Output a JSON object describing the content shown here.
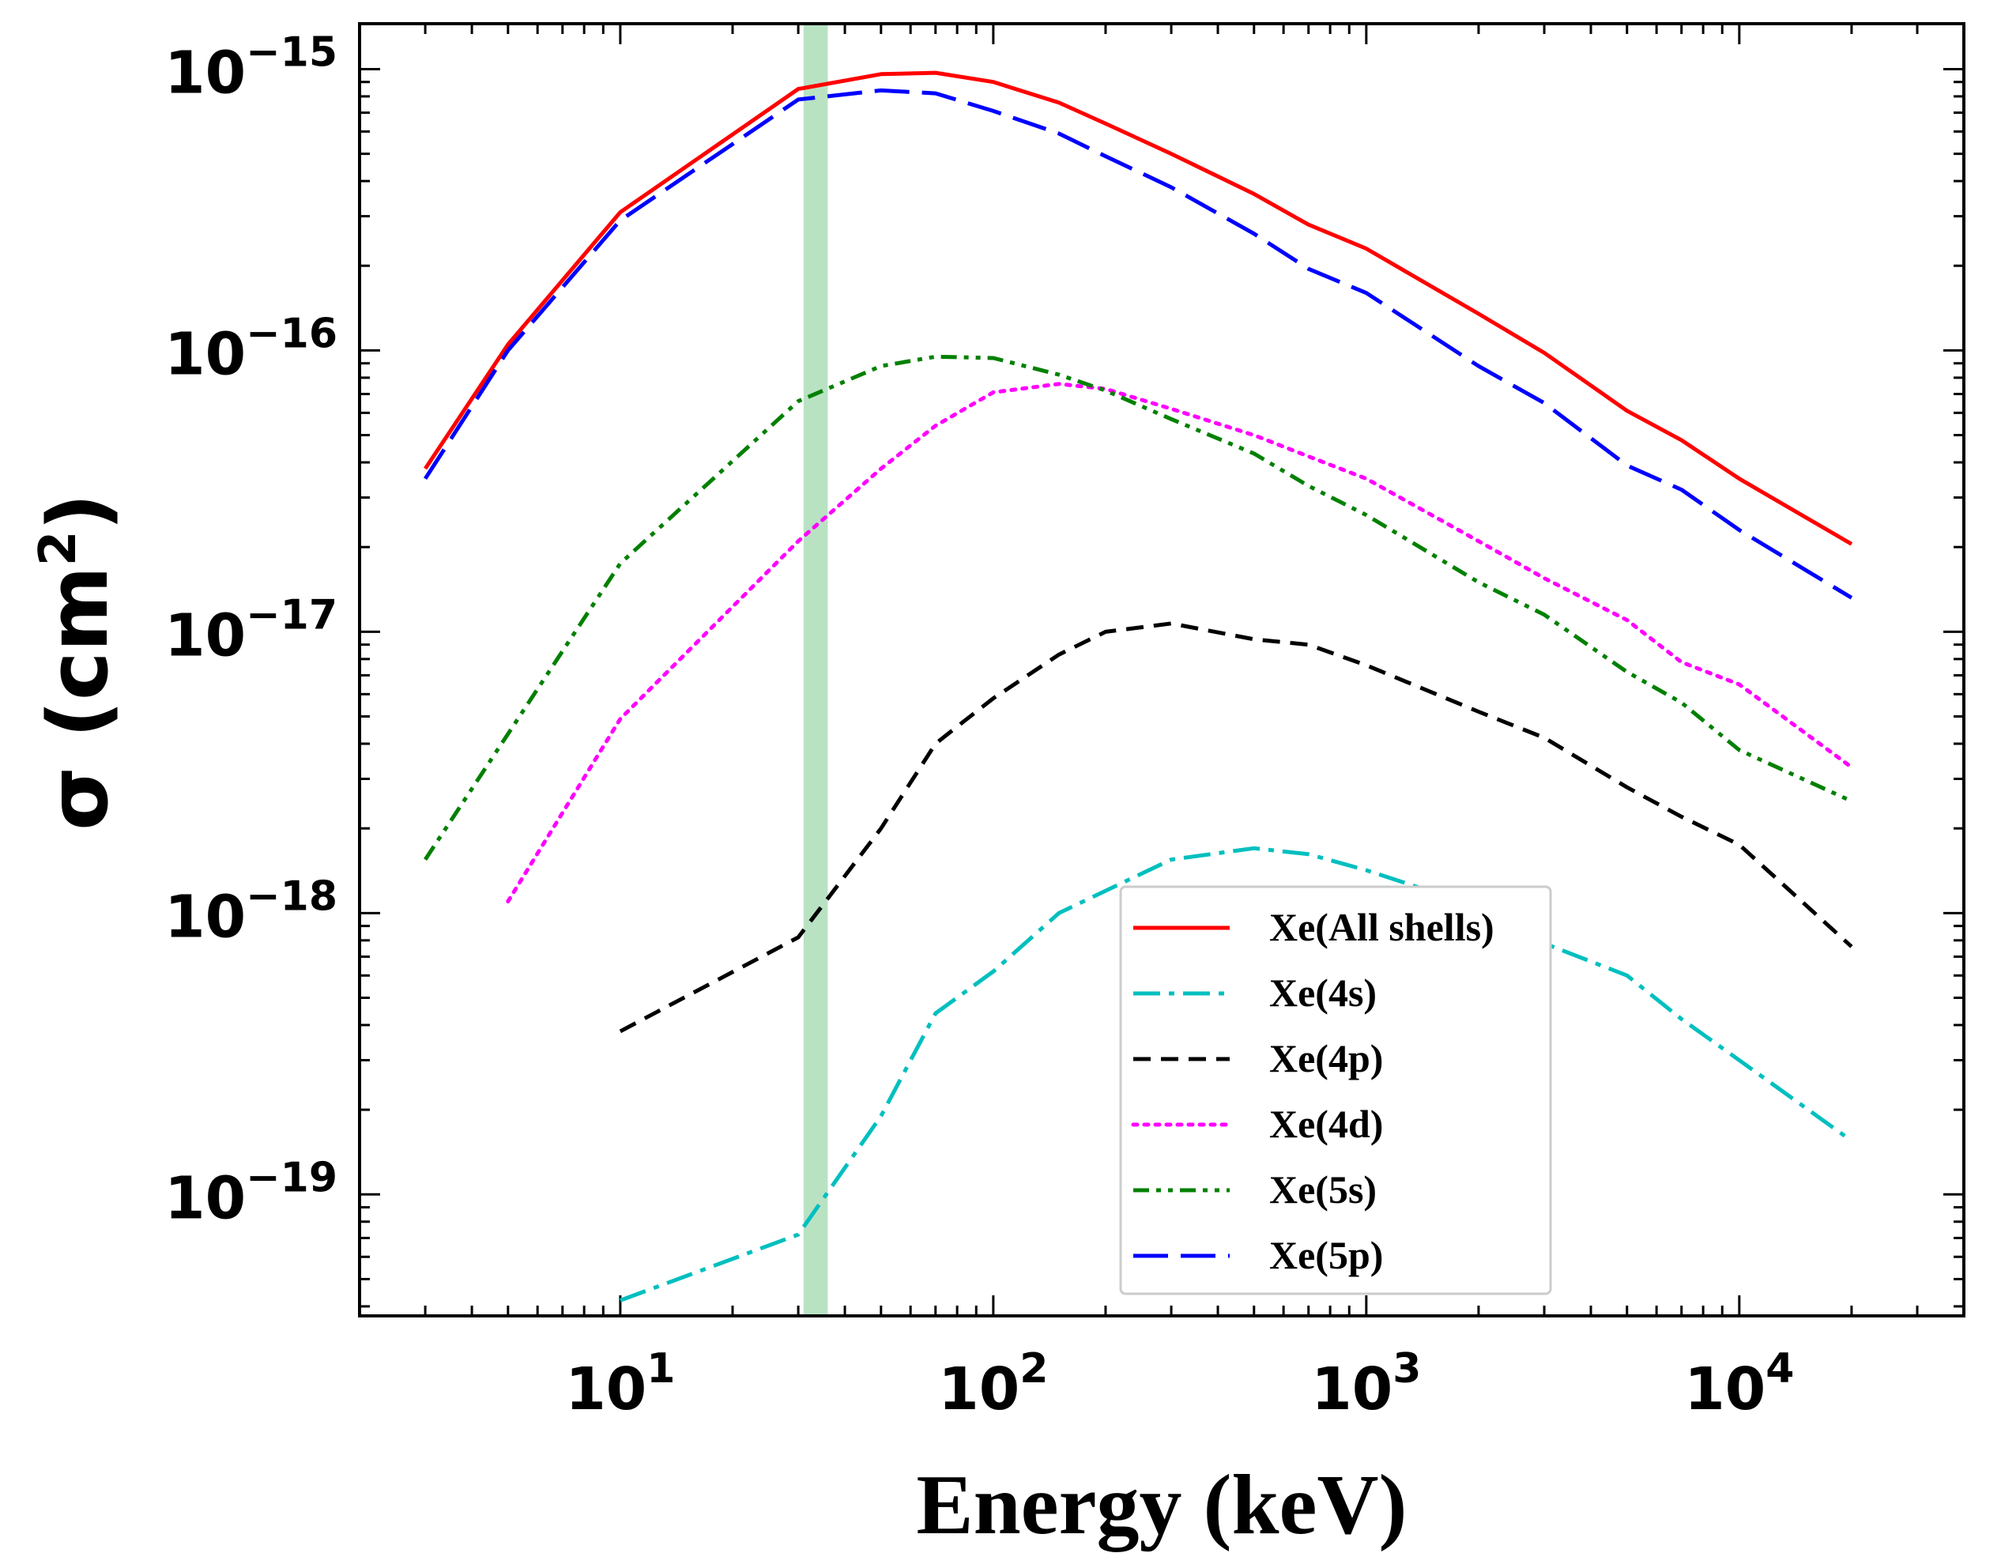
{
  "chart_data": {
    "type": "line",
    "xscale": "log",
    "yscale": "log",
    "xlabel": "Energy (keV)",
    "ylabel": {
      "main": "σ (cm",
      "sup": "2",
      "close": ")"
    },
    "xlim": [
      2,
      40000
    ],
    "ylim": [
      3.7e-20,
      1.45e-15
    ],
    "xticks": [
      {
        "value": 10,
        "base": "10",
        "exp": "1"
      },
      {
        "value": 100,
        "base": "10",
        "exp": "2"
      },
      {
        "value": 1000,
        "base": "10",
        "exp": "3"
      },
      {
        "value": 10000,
        "base": "10",
        "exp": "4"
      }
    ],
    "yticks": [
      {
        "value": 1e-19,
        "base": "10",
        "exp": "−19"
      },
      {
        "value": 1e-18,
        "base": "10",
        "exp": "−18"
      },
      {
        "value": 1e-17,
        "base": "10",
        "exp": "−17"
      },
      {
        "value": 1e-16,
        "base": "10",
        "exp": "−16"
      },
      {
        "value": 1e-15,
        "base": "10",
        "exp": "−15"
      }
    ],
    "highlight_band": {
      "x0": 31,
      "x1": 36,
      "color": "#b9e2c3"
    },
    "legend_position": "lower-center-right",
    "series": [
      {
        "name": "Xe(All shells)",
        "color": "#ff0000",
        "dash": "solid",
        "x": [
          3,
          5,
          10,
          30,
          50,
          70,
          100,
          150,
          200,
          300,
          500,
          700,
          1000,
          2000,
          3000,
          5000,
          7000,
          10000,
          20000
        ],
        "y": [
          3.8e-17,
          1.05e-16,
          3.1e-16,
          8.5e-16,
          9.6e-16,
          9.7e-16,
          9e-16,
          7.6e-16,
          6.4e-16,
          5e-16,
          3.6e-16,
          2.8e-16,
          2.3e-16,
          1.35e-16,
          9.8e-17,
          6.1e-17,
          4.8e-17,
          3.5e-17,
          2.05e-17
        ]
      },
      {
        "name": "Xe(4s)",
        "color": "#00bfbf",
        "dash": "dashdot",
        "x": [
          10,
          30,
          50,
          70,
          100,
          150,
          200,
          300,
          500,
          700,
          1000,
          2000,
          3000,
          5000,
          7000,
          10000,
          20000
        ],
        "y": [
          4.2e-20,
          7.2e-20,
          1.9e-19,
          4.4e-19,
          6.2e-19,
          1e-18,
          1.2e-18,
          1.55e-18,
          1.7e-18,
          1.62e-18,
          1.42e-18,
          1.05e-18,
          7.8e-19,
          6e-19,
          4.2e-19,
          3e-19,
          1.55e-19
        ]
      },
      {
        "name": "Xe(4p)",
        "color": "#000000",
        "dash": "dashed",
        "x": [
          10,
          30,
          50,
          70,
          80,
          100,
          150,
          200,
          300,
          500,
          700,
          1000,
          2000,
          3000,
          5000,
          7000,
          10000,
          20000
        ],
        "y": [
          3.8e-19,
          8.2e-19,
          2e-18,
          4e-18,
          4.6e-18,
          5.8e-18,
          8.3e-18,
          1e-17,
          1.07e-17,
          9.4e-18,
          9e-18,
          7.6e-18,
          5.2e-18,
          4.2e-18,
          2.8e-18,
          2.2e-18,
          1.75e-18,
          7.6e-19
        ]
      },
      {
        "name": "Xe(4d)",
        "color": "#ff00ff",
        "dash": "dotted",
        "x": [
          5,
          10,
          30,
          50,
          70,
          100,
          150,
          200,
          300,
          500,
          700,
          1000,
          2000,
          3000,
          5000,
          7000,
          10000,
          20000
        ],
        "y": [
          1.1e-18,
          4.9e-18,
          2.1e-17,
          3.8e-17,
          5.4e-17,
          7.1e-17,
          7.6e-17,
          7.3e-17,
          6.2e-17,
          5e-17,
          4.2e-17,
          3.5e-17,
          2.1e-17,
          1.55e-17,
          1.1e-17,
          7.8e-18,
          6.5e-18,
          3.3e-18
        ]
      },
      {
        "name": "Xe(5s)",
        "color": "#008000",
        "dash": "dashdotdot",
        "x": [
          3,
          10,
          30,
          50,
          70,
          100,
          150,
          200,
          300,
          500,
          700,
          1000,
          2000,
          3000,
          5000,
          7000,
          10000,
          20000
        ],
        "y": [
          1.55e-18,
          1.75e-17,
          6.6e-17,
          8.8e-17,
          9.5e-17,
          9.4e-17,
          8.2e-17,
          7.2e-17,
          5.7e-17,
          4.3e-17,
          3.3e-17,
          2.6e-17,
          1.5e-17,
          1.15e-17,
          7.2e-18,
          5.6e-18,
          3.8e-18,
          2.5e-18
        ]
      },
      {
        "name": "Xe(5p)",
        "color": "#0000ff",
        "dash": "longdash",
        "x": [
          3,
          5,
          10,
          30,
          50,
          70,
          100,
          150,
          200,
          300,
          500,
          700,
          1000,
          2000,
          3000,
          5000,
          7000,
          10000,
          20000
        ],
        "y": [
          3.5e-17,
          1e-16,
          2.9e-16,
          7.8e-16,
          8.4e-16,
          8.2e-16,
          7.1e-16,
          5.9e-16,
          4.9e-16,
          3.8e-16,
          2.6e-16,
          1.95e-16,
          1.6e-16,
          8.8e-17,
          6.5e-17,
          3.9e-17,
          3.2e-17,
          2.3e-17,
          1.32e-17
        ]
      }
    ]
  }
}
